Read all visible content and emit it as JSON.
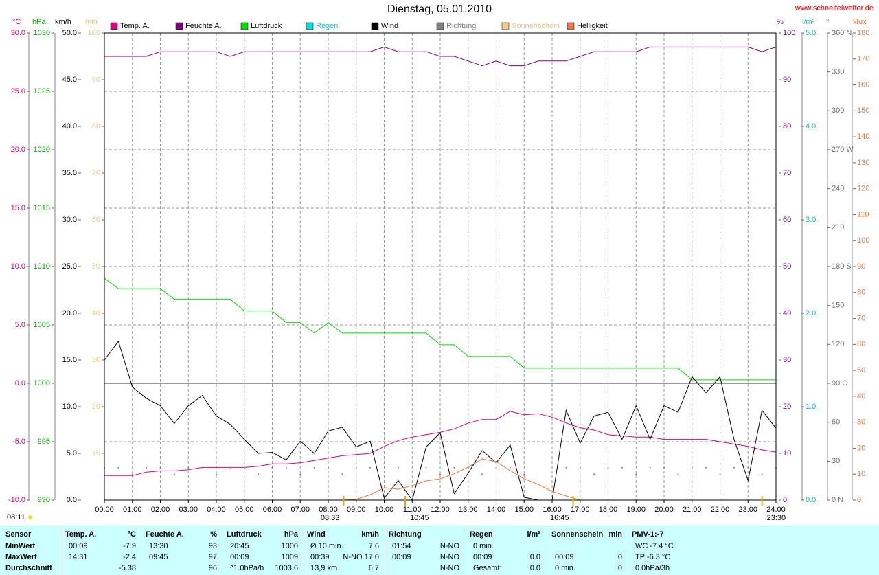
{
  "chart_data": {
    "type": "line",
    "title": "Dienstag, 05.01.2010",
    "source": "www.schneifelwetter.de",
    "xlim": [
      0,
      24
    ],
    "xticks": [
      {
        "value": 0,
        "label": "00:00"
      },
      {
        "value": 1,
        "label": "01:00"
      },
      {
        "value": 2,
        "label": "02:00"
      },
      {
        "value": 3,
        "label": "03:00"
      },
      {
        "value": 4,
        "label": "04:00"
      },
      {
        "value": 5,
        "label": "05:00"
      },
      {
        "value": 6,
        "label": "06:00"
      },
      {
        "value": 7,
        "label": "07:00"
      },
      {
        "value": 8,
        "label": "08:00"
      },
      {
        "value": 9,
        "label": "09:00"
      },
      {
        "value": 10,
        "label": "10:00"
      },
      {
        "value": 11,
        "label": "11:00"
      },
      {
        "value": 12,
        "label": "12:00"
      },
      {
        "value": 13,
        "label": "13:00"
      },
      {
        "value": 14,
        "label": "14:00"
      },
      {
        "value": 15,
        "label": "15:00"
      },
      {
        "value": 16,
        "label": "16:00"
      },
      {
        "value": 17,
        "label": "17:00"
      },
      {
        "value": 18,
        "label": "18:00"
      },
      {
        "value": 19,
        "label": "19:00"
      },
      {
        "value": 20,
        "label": "20:00"
      },
      {
        "value": 21,
        "label": "21:00"
      },
      {
        "value": 22,
        "label": "22:00"
      },
      {
        "value": 23,
        "label": "23:00"
      },
      {
        "value": 24,
        "label": "24:00"
      }
    ],
    "x": [
      0,
      0.5,
      1,
      1.5,
      2,
      2.5,
      3,
      3.5,
      4,
      4.5,
      5,
      5.5,
      6,
      6.5,
      7,
      7.5,
      8,
      8.5,
      9,
      9.5,
      10,
      10.5,
      11,
      11.5,
      12,
      12.5,
      13,
      13.5,
      14,
      14.5,
      15,
      15.5,
      16,
      16.5,
      17,
      17.5,
      18,
      18.5,
      19,
      19.5,
      20,
      20.5,
      21,
      21.5,
      22,
      22.5,
      23,
      23.5,
      24
    ],
    "axes": [
      {
        "unit": "°C",
        "side": "left",
        "color": "#e0007a",
        "grid": true,
        "lim": [
          -10,
          30
        ],
        "ticks": [
          {
            "value": -10,
            "label": "-10.0"
          },
          {
            "value": -5,
            "label": "-5.0"
          },
          {
            "value": 0,
            "label": "0.0"
          },
          {
            "value": 5,
            "label": "5.0"
          },
          {
            "value": 10,
            "label": "10.0"
          },
          {
            "value": 15,
            "label": "15.0"
          },
          {
            "value": 20,
            "label": "20.0"
          },
          {
            "value": 25,
            "label": "25.0"
          },
          {
            "value": 30,
            "label": "30.0"
          }
        ]
      },
      {
        "unit": "hPa",
        "side": "left",
        "color": "#00b000",
        "lim": [
          990,
          1030
        ],
        "ticks": [
          990,
          995,
          1000,
          1005,
          1010,
          1015,
          1020,
          1025,
          1030
        ]
      },
      {
        "unit": "km/h",
        "side": "left",
        "color": "#000000",
        "lim": [
          0,
          50
        ],
        "ticks": [
          {
            "value": 0,
            "label": "0.0"
          },
          {
            "value": 5,
            "label": "5.0"
          },
          {
            "value": 10,
            "label": "10.0"
          },
          {
            "value": 15,
            "label": "15.0"
          },
          {
            "value": 20,
            "label": "20.0"
          },
          {
            "value": 25,
            "label": "25.0"
          },
          {
            "value": 30,
            "label": "30.0"
          },
          {
            "value": 35,
            "label": "35.0"
          },
          {
            "value": 40,
            "label": "40.0"
          },
          {
            "value": 45,
            "label": "45.0"
          },
          {
            "value": 50,
            "label": "50.0"
          }
        ]
      },
      {
        "unit": "min",
        "side": "left",
        "color": "#f0c890",
        "lim": [
          0,
          100
        ],
        "ticks": [
          10,
          20,
          30,
          40,
          50,
          60,
          70,
          80,
          90,
          100
        ]
      },
      {
        "unit": "%",
        "side": "right",
        "color": "#800080",
        "lim": [
          0,
          100
        ],
        "ticks": [
          0,
          10,
          20,
          30,
          40,
          50,
          60,
          70,
          80,
          90,
          100
        ]
      },
      {
        "unit": "l/m²",
        "side": "right",
        "color": "#00c8c8",
        "lim": [
          0,
          5
        ],
        "ticks": [
          {
            "value": 0,
            "label": "0.0"
          },
          {
            "value": 1,
            "label": "1.0"
          },
          {
            "value": 2,
            "label": "2.0"
          },
          {
            "value": 3,
            "label": "3.0"
          },
          {
            "value": 4,
            "label": "4.0"
          },
          {
            "value": 5,
            "label": "5.0"
          }
        ]
      },
      {
        "unit": "°",
        "side": "right",
        "color": "#707070",
        "lim": [
          0,
          360
        ],
        "ticks": [
          {
            "value": 0,
            "label": "0 N"
          },
          30,
          60,
          {
            "value": 90,
            "label": "90 O"
          },
          120,
          150,
          {
            "value": 180,
            "label": "180 S"
          },
          210,
          240,
          {
            "value": 270,
            "label": "270 W"
          },
          300,
          330,
          {
            "value": 360,
            "label": "360 N"
          }
        ]
      },
      {
        "unit": "klux",
        "side": "right",
        "color": "#e87840",
        "lim": [
          0,
          180
        ],
        "ticks": [
          0,
          10,
          20,
          30,
          40,
          50,
          60,
          70,
          80,
          90,
          100,
          110,
          120,
          130,
          140,
          150,
          160,
          170,
          180
        ]
      }
    ],
    "series": [
      {
        "name": "Temp. A.",
        "color": "#e0007a",
        "axis": 0,
        "style": "line",
        "values": [
          -7.9,
          -7.9,
          -7.9,
          -7.6,
          -7.5,
          -7.5,
          -7.4,
          -7.2,
          -7.2,
          -7.2,
          -7.2,
          -7.1,
          -6.9,
          -6.9,
          -6.8,
          -6.6,
          -6.4,
          -6.2,
          -6.1,
          -6.0,
          -5.4,
          -4.9,
          -4.6,
          -4.4,
          -4.2,
          -3.9,
          -3.4,
          -3.1,
          -3.1,
          -2.4,
          -2.7,
          -2.6,
          -2.9,
          -3.4,
          -3.8,
          -4.0,
          -4.4,
          -4.5,
          -4.6,
          -4.6,
          -4.8,
          -4.8,
          -4.8,
          -4.8,
          -5.0,
          -5.2,
          -5.4,
          -5.7,
          -5.9
        ]
      },
      {
        "name": "Feuchte A.",
        "color": "#800080",
        "axis": 4,
        "style": "line",
        "values": [
          95,
          95,
          95,
          95,
          96,
          96,
          96,
          96,
          96,
          95,
          96,
          96,
          96,
          96,
          96,
          96,
          96,
          96,
          96,
          96,
          97,
          96,
          96,
          96,
          95,
          95,
          94,
          93,
          94,
          93,
          93,
          94,
          94,
          94,
          95,
          96,
          96,
          96,
          96,
          97,
          97,
          97,
          97,
          97,
          97,
          97,
          97,
          96,
          97
        ]
      },
      {
        "name": "Luftdruck",
        "color": "#00dd00",
        "axis": 1,
        "style": "line",
        "values": [
          1009,
          1008.1,
          1008.1,
          1008.1,
          1008.1,
          1007.2,
          1007.2,
          1007.2,
          1007.2,
          1007.2,
          1006.2,
          1006.2,
          1006.2,
          1005.2,
          1005.2,
          1004.3,
          1005.2,
          1004.3,
          1004.3,
          1004.3,
          1004.3,
          1004.3,
          1004.3,
          1004.3,
          1003.3,
          1003.3,
          1002.3,
          1002.3,
          1002.3,
          1002.3,
          1001.3,
          1001.3,
          1001.3,
          1001.3,
          1001.3,
          1001.3,
          1001.3,
          1001.3,
          1001.3,
          1001.3,
          1001.3,
          1001.3,
          1000.3,
          1000.3,
          1000.3,
          1000.3,
          1000.3,
          1000.3,
          1000.3
        ]
      },
      {
        "name": "Regen",
        "color": "#00e0e0",
        "label_color": "#00d0d0",
        "axis": 5,
        "style": "line",
        "values": [
          0,
          0,
          0,
          0,
          0,
          0,
          0,
          0,
          0,
          0,
          0,
          0,
          0,
          0,
          0,
          0,
          0,
          0,
          0,
          0,
          0,
          0,
          0,
          0,
          0,
          0,
          0,
          0,
          0,
          0,
          0,
          0,
          0,
          0,
          0,
          0,
          0,
          0,
          0,
          0,
          0,
          0,
          0,
          0,
          0,
          0,
          0,
          0,
          0
        ]
      },
      {
        "name": "Wind",
        "color": "#000000",
        "axis": 2,
        "style": "line",
        "values": [
          15.0,
          17.0,
          12.1,
          10.9,
          10.1,
          8.2,
          10.1,
          11.2,
          9.0,
          8.1,
          6.5,
          5.0,
          5.1,
          4.3,
          6.3,
          5.0,
          7.4,
          7.8,
          5.7,
          6.3,
          0.2,
          2.1,
          0,
          5.7,
          7.2,
          0.7,
          2.9,
          5.3,
          4.0,
          5.9,
          0.3,
          0,
          0,
          9.6,
          6.1,
          9.0,
          9.4,
          6.5,
          10.1,
          6.5,
          10.1,
          9.4,
          13.2,
          11.5,
          13.2,
          6.5,
          2.1,
          9.6,
          7.7
        ]
      },
      {
        "name": "Richtung",
        "color": "#808080",
        "label_color": "#808080",
        "axis": 6,
        "style": "dots",
        "values": [
          25,
          25,
          20,
          25,
          25,
          20,
          25,
          25,
          20,
          25,
          25,
          20,
          25,
          25,
          20,
          25,
          25,
          20,
          25,
          25,
          null,
          25,
          null,
          25,
          20,
          25,
          25,
          20,
          25,
          25,
          20,
          null,
          null,
          25,
          25,
          20,
          25,
          25,
          20,
          25,
          25,
          20,
          25,
          25,
          20,
          25,
          25,
          20,
          25
        ]
      },
      {
        "name": "Sonnenschein",
        "color": "#f8c890",
        "label_color": "#f0c080",
        "axis": 3,
        "style": "line",
        "values": [
          0,
          0,
          0,
          0,
          0,
          0,
          0,
          0,
          0,
          0,
          0,
          0,
          0,
          0,
          0,
          0,
          0,
          0,
          0,
          0,
          0,
          0,
          0,
          0,
          0,
          0,
          0,
          0,
          0,
          0,
          0,
          0,
          0,
          0,
          0,
          0,
          0,
          0,
          0,
          0,
          0,
          0,
          0,
          0,
          0,
          0,
          0,
          0,
          0
        ]
      },
      {
        "name": "Helligkeit",
        "color": "#f07840",
        "axis": 7,
        "style": "line",
        "values": [
          null,
          null,
          null,
          null,
          null,
          null,
          null,
          null,
          null,
          null,
          null,
          null,
          null,
          null,
          null,
          null,
          null,
          0,
          0.3,
          2.1,
          4.8,
          4.2,
          5.6,
          7.4,
          8.2,
          10.1,
          12.7,
          15.9,
          14.8,
          11.4,
          8.2,
          6.1,
          3.4,
          1.6,
          0,
          null,
          null,
          null,
          null,
          null,
          null,
          null,
          null,
          null,
          null,
          null,
          null,
          null,
          null
        ]
      }
    ],
    "day_start": "08:11",
    "markers": [
      {
        "value": 8.55,
        "label": "08:33"
      },
      {
        "value": 10.75,
        "label": "10:45"
      },
      {
        "value": 16.75,
        "label": "16:45"
      },
      {
        "value": 23.5,
        "label": "23:30"
      }
    ]
  },
  "table": {
    "header": "Sensor",
    "columns": [
      {
        "name": "Temp. A.",
        "unit": "°C"
      },
      {
        "name": "Feuchte A.",
        "unit": "%"
      },
      {
        "name": "Luftdruck",
        "unit": "hPa"
      },
      {
        "name": "Wind",
        "unit": "km/h"
      },
      {
        "name": "Richtung",
        "unit": null
      },
      {
        "name": "Regen",
        "unit": "l/m²"
      },
      {
        "name": "Sonnenschein",
        "unit": "min"
      },
      {
        "name": "PMV-1:-7",
        "unit": null
      }
    ],
    "rows": [
      {
        "label": "MinWert",
        "cells": [
          [
            "00:09",
            "-7.9"
          ],
          [
            "13:30",
            "93"
          ],
          [
            "20:45",
            "1000"
          ],
          [
            "Ø 10 min.",
            "7.6"
          ],
          [
            "01:54",
            "N-NO"
          ],
          [
            "0 min.",
            null
          ],
          [
            null,
            null
          ],
          [
            "WC -7.4 °C",
            null
          ]
        ]
      },
      {
        "label": "MaxWert",
        "cells": [
          [
            "14:31",
            "-2.4"
          ],
          [
            "09:45",
            "97"
          ],
          [
            "00:09",
            "1009"
          ],
          [
            "00:39",
            "N-NO 17.0"
          ],
          [
            "00:09",
            "N-NO"
          ],
          [
            "00:09",
            "0.0"
          ],
          [
            "00:09",
            "0"
          ],
          [
            "TP -6.3 °C",
            null
          ]
        ]
      },
      {
        "label": "Durchschnitt",
        "cells": [
          [
            null,
            "-5.38"
          ],
          [
            null,
            "96"
          ],
          [
            "^1.0hPa/h",
            "1003.6"
          ],
          [
            "13,9 km",
            "6.7"
          ],
          [
            null,
            "N-NO"
          ],
          [
            "Gesamt:",
            "0.0"
          ],
          [
            "0 min.",
            "0"
          ],
          [
            "0.0hPa/3h",
            null
          ]
        ]
      }
    ]
  }
}
